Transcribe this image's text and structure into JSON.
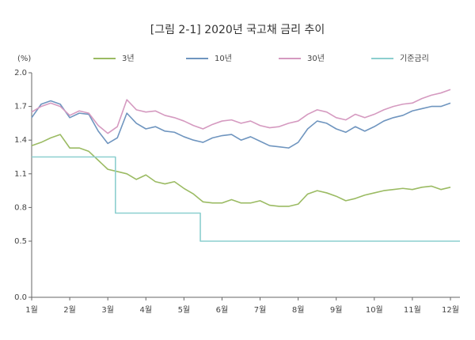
{
  "chart_data": {
    "type": "line",
    "title": "[그림 2-1] 2020년 국고채 금리 추이",
    "y_label": "(%)",
    "x": [
      1,
      1.25,
      1.5,
      1.75,
      2,
      2.25,
      2.5,
      2.75,
      3,
      3.25,
      3.5,
      3.75,
      4,
      4.25,
      4.5,
      4.75,
      5,
      5.25,
      5.5,
      5.75,
      6,
      6.25,
      6.5,
      6.75,
      7,
      7.25,
      7.5,
      7.75,
      8,
      8.25,
      8.5,
      8.75,
      9,
      9.25,
      9.5,
      9.75,
      10,
      10.25,
      10.5,
      10.75,
      11,
      11.25,
      11.5,
      11.75,
      12
    ],
    "series": [
      {
        "name": "3년",
        "color": "#9bbb63",
        "values": [
          1.35,
          1.38,
          1.42,
          1.45,
          1.33,
          1.33,
          1.3,
          1.22,
          1.14,
          1.12,
          1.1,
          1.05,
          1.09,
          1.03,
          1.01,
          1.03,
          0.97,
          0.92,
          0.85,
          0.84,
          0.84,
          0.87,
          0.84,
          0.84,
          0.86,
          0.82,
          0.81,
          0.81,
          0.83,
          0.92,
          0.95,
          0.93,
          0.9,
          0.86,
          0.88,
          0.91,
          0.93,
          0.95,
          0.96,
          0.97,
          0.96,
          0.98,
          0.99,
          0.96,
          0.98
        ]
      },
      {
        "name": "10년",
        "color": "#6f95bf",
        "values": [
          1.6,
          1.72,
          1.75,
          1.72,
          1.6,
          1.64,
          1.63,
          1.48,
          1.37,
          1.42,
          1.64,
          1.55,
          1.5,
          1.52,
          1.48,
          1.47,
          1.43,
          1.4,
          1.38,
          1.42,
          1.44,
          1.45,
          1.4,
          1.43,
          1.39,
          1.35,
          1.34,
          1.33,
          1.38,
          1.5,
          1.57,
          1.55,
          1.5,
          1.47,
          1.52,
          1.48,
          1.52,
          1.57,
          1.6,
          1.62,
          1.66,
          1.68,
          1.7,
          1.7,
          1.73
        ]
      },
      {
        "name": "30년",
        "color": "#d59ac0",
        "values": [
          1.65,
          1.7,
          1.73,
          1.7,
          1.62,
          1.66,
          1.64,
          1.53,
          1.46,
          1.52,
          1.76,
          1.67,
          1.65,
          1.66,
          1.62,
          1.6,
          1.57,
          1.53,
          1.5,
          1.54,
          1.57,
          1.58,
          1.55,
          1.57,
          1.53,
          1.51,
          1.52,
          1.55,
          1.57,
          1.63,
          1.67,
          1.65,
          1.6,
          1.58,
          1.63,
          1.6,
          1.63,
          1.67,
          1.7,
          1.72,
          1.73,
          1.77,
          1.8,
          1.82,
          1.85
        ]
      },
      {
        "name": "기준금리",
        "color": "#8ccfcf",
        "step": true,
        "x": [
          1,
          3.2,
          5.43
        ],
        "values": [
          1.25,
          0.75,
          0.5
        ]
      }
    ],
    "xlim": [
      1,
      12.25
    ],
    "xticks": [
      {
        "value": 1,
        "label": "1월"
      },
      {
        "value": 2,
        "label": "2월"
      },
      {
        "value": 3,
        "label": "3월"
      },
      {
        "value": 4,
        "label": "4월"
      },
      {
        "value": 5,
        "label": "5월"
      },
      {
        "value": 6,
        "label": "6월"
      },
      {
        "value": 7,
        "label": "7월"
      },
      {
        "value": 8,
        "label": "8월"
      },
      {
        "value": 9,
        "label": "9월"
      },
      {
        "value": 10,
        "label": "10월"
      },
      {
        "value": 11,
        "label": "11월"
      },
      {
        "value": 12,
        "label": "12월"
      }
    ],
    "ylim": [
      0,
      2
    ],
    "yticks": [
      {
        "value": 0,
        "label": "0.0"
      },
      0.5,
      0.8,
      1.1,
      1.4,
      1.7,
      {
        "value": 2,
        "label": "2.0"
      }
    ],
    "grid": false,
    "legend": "top"
  }
}
